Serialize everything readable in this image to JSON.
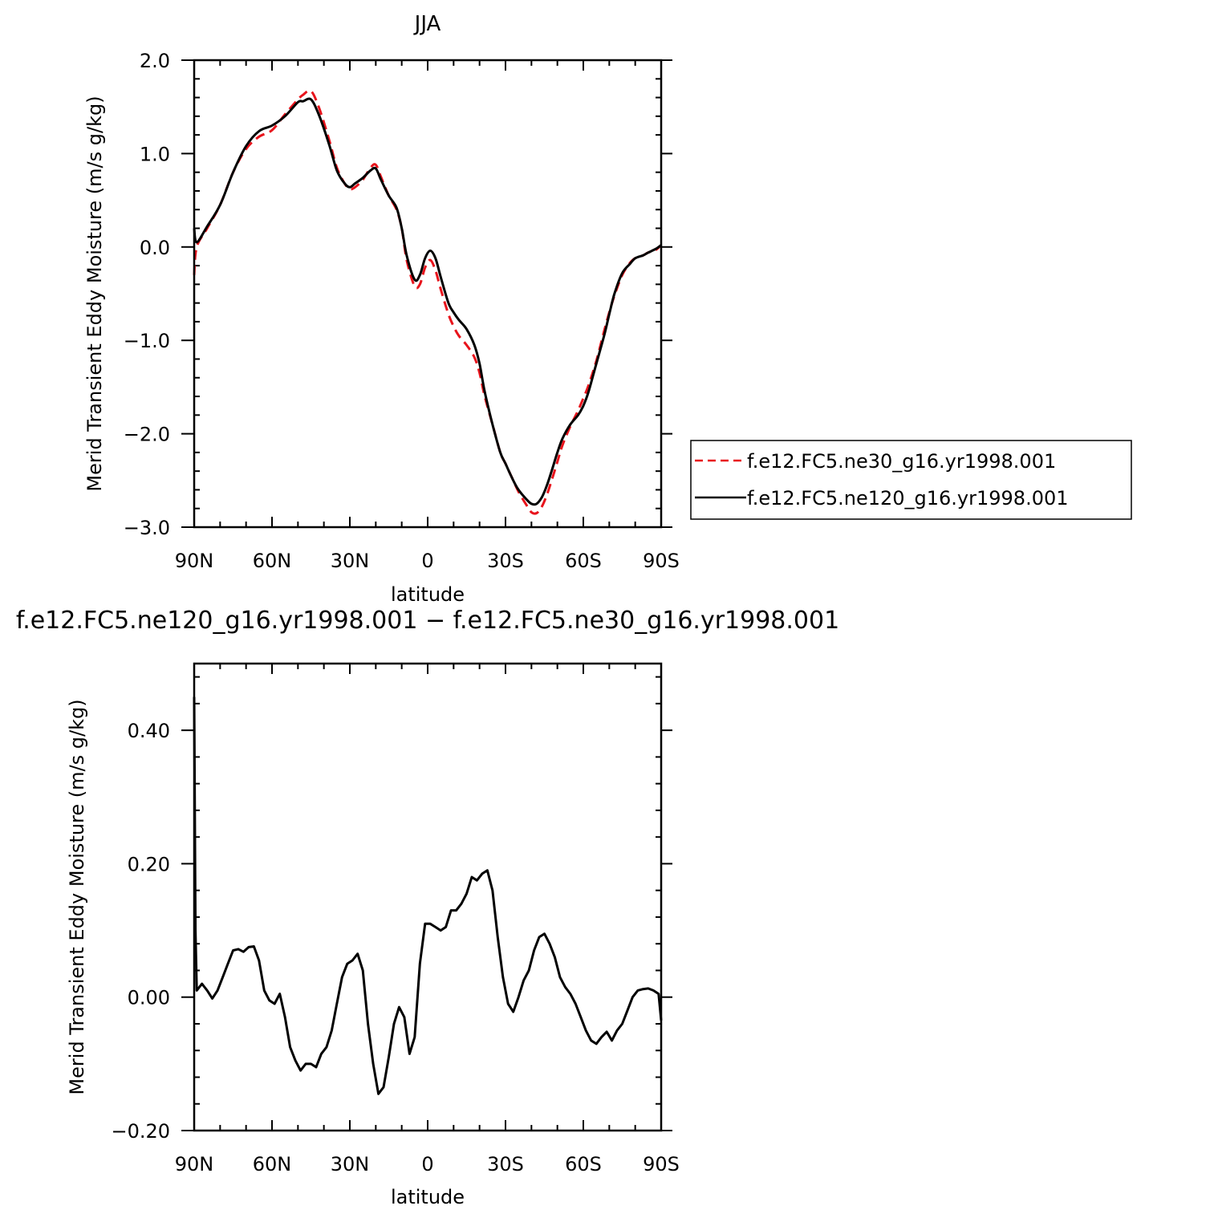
{
  "chart_data": [
    {
      "type": "line",
      "title": "JJA",
      "xlabel": "latitude",
      "ylabel": "Merid Transient Eddy Moisture (m/s g/kg)",
      "xlim": [
        90,
        -90
      ],
      "ylim": [
        -3.0,
        2.0
      ],
      "x_ticks": [
        90,
        60,
        30,
        0,
        -30,
        -60,
        -90
      ],
      "x_tick_labels": [
        "90N",
        "60N",
        "30N",
        "0",
        "30S",
        "60S",
        "90S"
      ],
      "y_ticks": [
        2.0,
        1.0,
        0.0,
        -1.0,
        -2.0,
        -3.0
      ],
      "y_tick_labels": [
        "2.0",
        "1.0",
        "0.0",
        "−1.0",
        "−2.0",
        "−3.0"
      ],
      "grid": false,
      "legend_position": "right",
      "series": [
        {
          "name": "f.e12.FC5.ne30_g16.yr1998.001",
          "color": "#e8141c",
          "dash": "dashed",
          "x": [
            90,
            89,
            85,
            80,
            75,
            70,
            65,
            60,
            55,
            50,
            48,
            45,
            42,
            38,
            35,
            32,
            30,
            28,
            25,
            22,
            20,
            18,
            15,
            12,
            10,
            8,
            5,
            3,
            1,
            -1,
            -3,
            -5,
            -8,
            -10,
            -12,
            -15,
            -18,
            -20,
            -22,
            -25,
            -28,
            -30,
            -33,
            -35,
            -38,
            -40,
            -42,
            -44,
            -46,
            -48,
            -50,
            -52,
            -55,
            -58,
            -60,
            -62,
            -65,
            -68,
            -70,
            -72,
            -75,
            -78,
            -80,
            -83,
            -85,
            -88,
            -90
          ],
          "y": [
            -0.3,
            0.0,
            0.2,
            0.45,
            0.8,
            1.05,
            1.18,
            1.25,
            1.42,
            1.58,
            1.63,
            1.67,
            1.5,
            1.15,
            0.85,
            0.68,
            0.62,
            0.64,
            0.72,
            0.85,
            0.88,
            0.75,
            0.55,
            0.4,
            0.2,
            -0.15,
            -0.42,
            -0.4,
            -0.22,
            -0.14,
            -0.25,
            -0.45,
            -0.72,
            -0.85,
            -0.95,
            -1.05,
            -1.18,
            -1.35,
            -1.6,
            -1.9,
            -2.2,
            -2.32,
            -2.5,
            -2.62,
            -2.76,
            -2.84,
            -2.85,
            -2.78,
            -2.65,
            -2.48,
            -2.3,
            -2.12,
            -1.92,
            -1.75,
            -1.62,
            -1.48,
            -1.22,
            -0.9,
            -0.7,
            -0.52,
            -0.3,
            -0.17,
            -0.12,
            -0.09,
            -0.06,
            -0.03,
            0.02
          ]
        },
        {
          "name": "f.e12.FC5.ne120_g16.yr1998.001",
          "color": "#000000",
          "dash": "solid",
          "x": [
            90,
            89,
            85,
            80,
            75,
            70,
            65,
            60,
            55,
            50,
            48,
            45,
            42,
            38,
            35,
            32,
            30,
            28,
            25,
            22,
            20,
            18,
            15,
            12,
            10,
            8,
            5,
            3,
            1,
            -1,
            -3,
            -5,
            -8,
            -10,
            -12,
            -15,
            -18,
            -20,
            -22,
            -25,
            -28,
            -30,
            -33,
            -35,
            -38,
            -40,
            -42,
            -44,
            -46,
            -48,
            -50,
            -52,
            -55,
            -58,
            -60,
            -62,
            -65,
            -68,
            -70,
            -72,
            -75,
            -78,
            -80,
            -83,
            -85,
            -88,
            -90
          ],
          "y": [
            0.2,
            0.05,
            0.22,
            0.45,
            0.8,
            1.08,
            1.24,
            1.3,
            1.4,
            1.55,
            1.56,
            1.58,
            1.42,
            1.1,
            0.82,
            0.68,
            0.64,
            0.68,
            0.74,
            0.82,
            0.84,
            0.72,
            0.55,
            0.42,
            0.2,
            -0.1,
            -0.35,
            -0.3,
            -0.12,
            -0.04,
            -0.12,
            -0.32,
            -0.6,
            -0.7,
            -0.78,
            -0.88,
            -1.05,
            -1.25,
            -1.55,
            -1.9,
            -2.2,
            -2.32,
            -2.5,
            -2.6,
            -2.7,
            -2.75,
            -2.75,
            -2.68,
            -2.55,
            -2.38,
            -2.2,
            -2.05,
            -1.9,
            -1.8,
            -1.7,
            -1.55,
            -1.25,
            -0.95,
            -0.72,
            -0.5,
            -0.28,
            -0.18,
            -0.12,
            -0.09,
            -0.06,
            -0.02,
            0.02
          ]
        }
      ]
    },
    {
      "type": "line",
      "title": "f.e12.FC5.ne120_g16.yr1998.001 − f.e12.FC5.ne30_g16.yr1998.001",
      "xlabel": "latitude",
      "ylabel": "Merid Transient Eddy Moisture (m/s g/kg)",
      "xlim": [
        90,
        -90
      ],
      "ylim": [
        -0.2,
        0.5
      ],
      "x_ticks": [
        90,
        60,
        30,
        0,
        -30,
        -60,
        -90
      ],
      "x_tick_labels": [
        "90N",
        "60N",
        "30N",
        "0",
        "30S",
        "60S",
        "90S"
      ],
      "y_ticks": [
        0.4,
        0.2,
        0.0,
        -0.2
      ],
      "y_tick_labels": [
        "0.40",
        "0.20",
        "0.00",
        "−0.20"
      ],
      "grid": false,
      "series": [
        {
          "color": "#000000",
          "dash": "solid",
          "x": [
            90,
            89.5,
            89,
            87,
            85,
            83,
            81,
            79,
            77,
            75,
            73,
            71,
            69,
            67,
            65,
            63,
            61,
            59,
            57,
            55,
            53,
            51,
            49,
            47,
            45,
            43,
            41,
            39,
            37,
            35,
            33,
            31,
            29,
            27,
            25,
            23,
            21,
            19,
            17,
            15,
            13,
            11,
            9,
            7,
            5,
            3,
            1,
            -1,
            -3,
            -5,
            -7,
            -9,
            -11,
            -13,
            -15,
            -17,
            -19,
            -21,
            -23,
            -25,
            -27,
            -29,
            -31,
            -33,
            -35,
            -37,
            -39,
            -41,
            -43,
            -45,
            -47,
            -49,
            -51,
            -53,
            -55,
            -57,
            -59,
            -61,
            -63,
            -65,
            -67,
            -69,
            -71,
            -73,
            -75,
            -77,
            -79,
            -81,
            -83,
            -85,
            -87,
            -89,
            -90
          ],
          "y": [
            0.45,
            0.1,
            0.01,
            0.02,
            0.01,
            -0.002,
            0.01,
            0.03,
            0.05,
            0.07,
            0.072,
            0.068,
            0.075,
            0.076,
            0.055,
            0.01,
            -0.005,
            -0.01,
            0.005,
            -0.03,
            -0.075,
            -0.095,
            -0.11,
            -0.1,
            -0.1,
            -0.105,
            -0.085,
            -0.075,
            -0.05,
            -0.01,
            0.03,
            0.05,
            0.055,
            0.065,
            0.04,
            -0.04,
            -0.1,
            -0.145,
            -0.135,
            -0.09,
            -0.04,
            -0.015,
            -0.03,
            -0.085,
            -0.06,
            0.05,
            0.11,
            0.11,
            0.105,
            0.1,
            0.105,
            0.13,
            0.13,
            0.14,
            0.155,
            0.18,
            0.175,
            0.185,
            0.19,
            0.16,
            0.09,
            0.03,
            -0.01,
            -0.022,
            0.0,
            0.025,
            0.04,
            0.07,
            0.09,
            0.095,
            0.08,
            0.06,
            0.03,
            0.015,
            0.005,
            -0.01,
            -0.03,
            -0.05,
            -0.065,
            -0.07,
            -0.06,
            -0.052,
            -0.065,
            -0.05,
            -0.04,
            -0.02,
            0.0,
            0.01,
            0.012,
            0.013,
            0.01,
            0.005,
            -0.035
          ]
        }
      ]
    }
  ]
}
